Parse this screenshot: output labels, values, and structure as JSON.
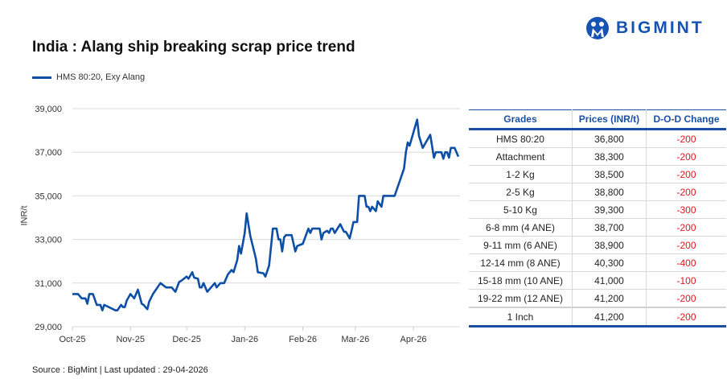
{
  "title": "India : Alang ship breaking scrap price trend",
  "logo": {
    "text": "BIGMINT",
    "color": "#1653b5"
  },
  "source": "Source : BigMint | Last updated : 29-04-2026",
  "table": {
    "headers": [
      "Grades",
      "Prices (INR/t)",
      "D-O-D Change"
    ],
    "rows": [
      [
        "HMS 80:20",
        "36,800",
        "-200"
      ],
      [
        "Attachment",
        "38,300",
        "-200"
      ],
      [
        "1-2 Kg",
        "38,500",
        "-200"
      ],
      [
        "2-5 Kg",
        "38,800",
        "-200"
      ],
      [
        "5-10 Kg",
        "39,300",
        "-300"
      ],
      [
        "6-8 mm (4 ANE)",
        "38,700",
        "-200"
      ],
      [
        "9-11 mm (6 ANE)",
        "38,900",
        "-200"
      ],
      [
        "12-14 mm (8 ANE)",
        "40,300",
        "-400"
      ],
      [
        "15-18 mm (10 ANE)",
        "41,000",
        "-100"
      ],
      [
        "19-22 mm (12 ANE)",
        "41,200",
        "-200"
      ],
      [
        "1 Inch",
        "41,200",
        "-200"
      ]
    ],
    "header_color": "#1a4fa3",
    "negative_color": "#e0141e"
  },
  "chart_data": {
    "type": "line",
    "title": "India : Alang ship breaking scrap price trend",
    "xlabel": "",
    "ylabel": "INR/t",
    "ylim": [
      29000,
      39000
    ],
    "yticks": [
      29000,
      31000,
      33000,
      35000,
      37000,
      39000
    ],
    "ytick_labels": [
      "29,000",
      "31,000",
      "33,000",
      "35,000",
      "37,000",
      "39,000"
    ],
    "xticks": [
      "2025-10-01",
      "2025-11-01",
      "2025-12-01",
      "2026-01-01",
      "2026-02-01",
      "2026-03-01",
      "2026-04-01"
    ],
    "xtick_labels": [
      "Oct-25",
      "Nov-25",
      "Dec-25",
      "Jan-26",
      "Feb-26",
      "Mar-26",
      "Apr-26"
    ],
    "grid": "horizontal",
    "legend": "top-left",
    "series": [
      {
        "name": "HMS 80:20, Exy Alang",
        "color": "#0d4ea6",
        "points": [
          [
            "2025-10-01",
            30500
          ],
          [
            "2025-10-04",
            30500
          ],
          [
            "2025-10-06",
            30300
          ],
          [
            "2025-10-08",
            30300
          ],
          [
            "2025-10-09",
            30050
          ],
          [
            "2025-10-10",
            30500
          ],
          [
            "2025-10-12",
            30500
          ],
          [
            "2025-10-14",
            30000
          ],
          [
            "2025-10-16",
            30000
          ],
          [
            "2025-10-17",
            29750
          ],
          [
            "2025-10-18",
            30000
          ],
          [
            "2025-10-24",
            29750
          ],
          [
            "2025-10-25",
            29750
          ],
          [
            "2025-10-27",
            30000
          ],
          [
            "2025-10-28",
            29900
          ],
          [
            "2025-10-29",
            29900
          ],
          [
            "2025-10-30",
            30200
          ],
          [
            "2025-11-01",
            30500
          ],
          [
            "2025-11-03",
            30300
          ],
          [
            "2025-11-05",
            30700
          ],
          [
            "2025-11-07",
            30050
          ],
          [
            "2025-11-08",
            30000
          ],
          [
            "2025-11-10",
            29800
          ],
          [
            "2025-11-11",
            30150
          ],
          [
            "2025-11-13",
            30500
          ],
          [
            "2025-11-17",
            31000
          ],
          [
            "2025-11-20",
            30800
          ],
          [
            "2025-11-23",
            30800
          ],
          [
            "2025-11-25",
            30600
          ],
          [
            "2025-11-27",
            31050
          ],
          [
            "2025-11-28",
            31100
          ],
          [
            "2025-12-01",
            31300
          ],
          [
            "2025-12-02",
            31200
          ],
          [
            "2025-12-04",
            31500
          ],
          [
            "2025-12-05",
            31250
          ],
          [
            "2025-12-07",
            31200
          ],
          [
            "2025-12-08",
            30800
          ],
          [
            "2025-12-09",
            30800
          ],
          [
            "2025-12-10",
            31000
          ],
          [
            "2025-12-12",
            30600
          ],
          [
            "2025-12-16",
            31000
          ],
          [
            "2025-12-17",
            30800
          ],
          [
            "2025-12-19",
            31000
          ],
          [
            "2025-12-21",
            31000
          ],
          [
            "2025-12-23",
            31400
          ],
          [
            "2025-12-25",
            31600
          ],
          [
            "2025-12-26",
            31500
          ],
          [
            "2025-12-28",
            32050
          ],
          [
            "2025-12-29",
            32700
          ],
          [
            "2025-12-30",
            32350
          ],
          [
            "2026-01-01",
            33300
          ],
          [
            "2026-01-02",
            34200
          ],
          [
            "2026-01-04",
            33150
          ],
          [
            "2026-01-06",
            32450
          ],
          [
            "2026-01-07",
            32100
          ],
          [
            "2026-01-08",
            31500
          ],
          [
            "2026-01-11",
            31450
          ],
          [
            "2026-01-12",
            31300
          ],
          [
            "2026-01-14",
            31800
          ],
          [
            "2026-01-16",
            33500
          ],
          [
            "2026-01-18",
            33500
          ],
          [
            "2026-01-19",
            33000
          ],
          [
            "2026-01-20",
            33000
          ],
          [
            "2026-01-21",
            32450
          ],
          [
            "2026-01-22",
            33100
          ],
          [
            "2026-01-23",
            33200
          ],
          [
            "2026-01-26",
            33200
          ],
          [
            "2026-01-28",
            32450
          ],
          [
            "2026-01-29",
            32700
          ],
          [
            "2026-02-01",
            32800
          ],
          [
            "2026-02-04",
            33500
          ],
          [
            "2026-02-05",
            33300
          ],
          [
            "2026-02-06",
            33500
          ],
          [
            "2026-02-10",
            33500
          ],
          [
            "2026-02-11",
            33000
          ],
          [
            "2026-02-12",
            33300
          ],
          [
            "2026-02-14",
            33400
          ],
          [
            "2026-02-15",
            33300
          ],
          [
            "2026-02-16",
            33500
          ],
          [
            "2026-02-17",
            33500
          ],
          [
            "2026-02-18",
            33300
          ],
          [
            "2026-02-21",
            33700
          ],
          [
            "2026-02-23",
            33350
          ],
          [
            "2026-02-24",
            33350
          ],
          [
            "2026-02-26",
            33050
          ],
          [
            "2026-02-27",
            33400
          ],
          [
            "2026-02-28",
            33800
          ],
          [
            "2026-03-02",
            33800
          ],
          [
            "2026-03-03",
            35000
          ],
          [
            "2026-03-06",
            35000
          ],
          [
            "2026-03-07",
            34500
          ],
          [
            "2026-03-08",
            34500
          ],
          [
            "2026-03-09",
            34300
          ],
          [
            "2026-03-10",
            34500
          ],
          [
            "2026-03-12",
            34300
          ],
          [
            "2026-03-13",
            34750
          ],
          [
            "2026-03-15",
            34500
          ],
          [
            "2026-03-16",
            35000
          ],
          [
            "2026-03-22",
            35000
          ],
          [
            "2026-03-24",
            35500
          ],
          [
            "2026-03-27",
            36250
          ],
          [
            "2026-03-28",
            37000
          ],
          [
            "2026-03-29",
            37450
          ],
          [
            "2026-03-30",
            37300
          ],
          [
            "2026-04-03",
            38500
          ],
          [
            "2026-04-04",
            37750
          ],
          [
            "2026-04-06",
            37200
          ],
          [
            "2026-04-10",
            37800
          ],
          [
            "2026-04-12",
            36750
          ],
          [
            "2026-04-13",
            37000
          ],
          [
            "2026-04-16",
            37000
          ],
          [
            "2026-04-17",
            36700
          ],
          [
            "2026-04-18",
            37000
          ],
          [
            "2026-04-19",
            37000
          ],
          [
            "2026-04-20",
            36750
          ],
          [
            "2026-04-21",
            37200
          ],
          [
            "2026-04-23",
            37200
          ],
          [
            "2026-04-25",
            36800
          ]
        ]
      }
    ]
  }
}
